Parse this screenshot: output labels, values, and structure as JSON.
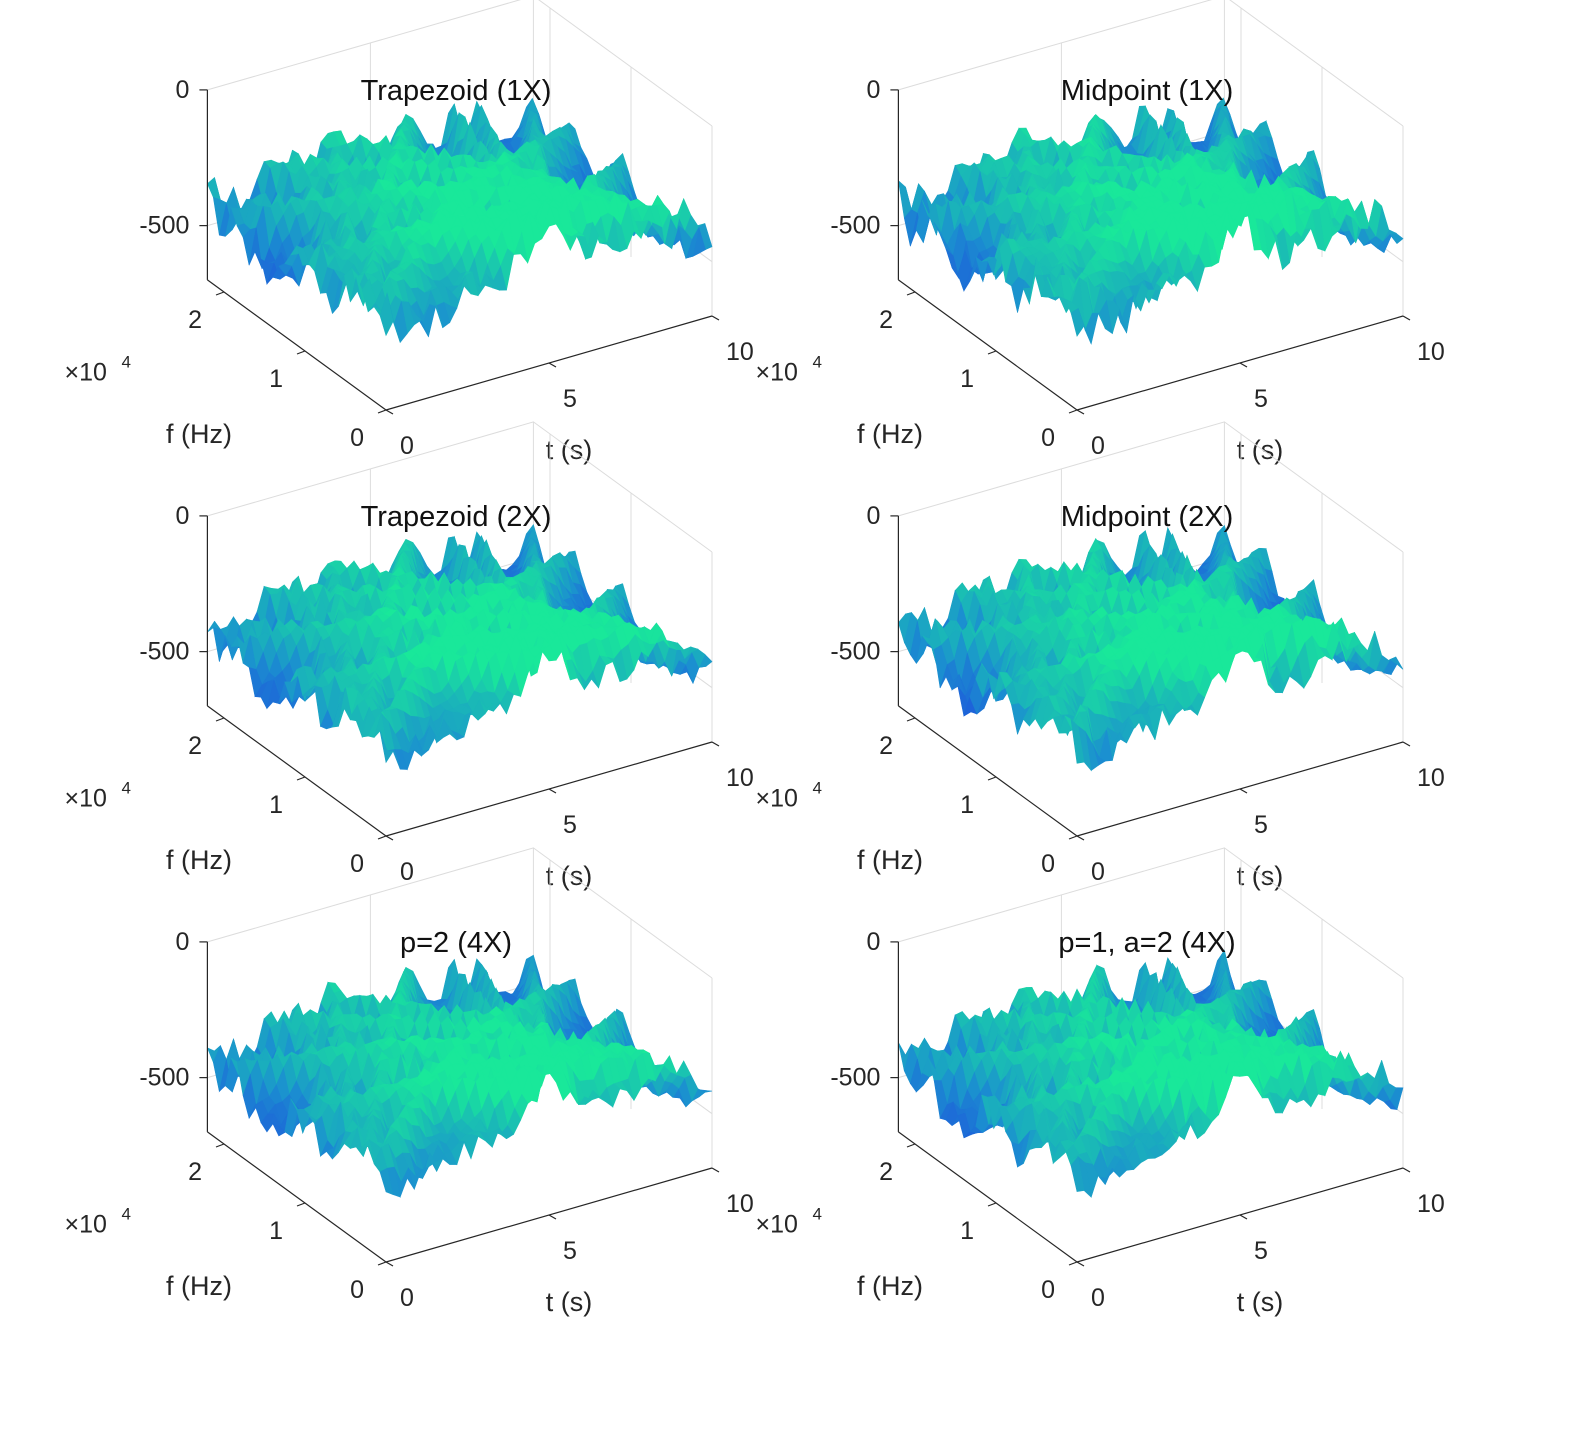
{
  "figure": {
    "layout": "3 rows x 2 columns"
  },
  "colormap": {
    "low": "#1f3fe0",
    "mid": "#1b8fd0",
    "high": "#19e89a"
  },
  "chart_data": [
    {
      "type": "surface",
      "title": "Trapezoid (1X)",
      "xlabel": "t (s)",
      "ylabel": "f (Hz)",
      "x_ticks": [
        "0",
        "5",
        "10"
      ],
      "y_ticks": [
        "0",
        "1",
        "2"
      ],
      "y_exponent": "×10",
      "y_exponent_power": "4",
      "z_ticks": [
        "0",
        "-500"
      ],
      "xlim": [
        0,
        10
      ],
      "ylim": [
        0,
        22050
      ],
      "zlim": [
        -700,
        0
      ],
      "seed": 11,
      "floor_noise": 1.0,
      "spread": 1.0
    },
    {
      "type": "surface",
      "title": "Midpoint (1X)",
      "xlabel": "t (s)",
      "ylabel": "f (Hz)",
      "x_ticks": [
        "0",
        "5",
        "10"
      ],
      "y_ticks": [
        "0",
        "1",
        "2"
      ],
      "y_exponent": "×10",
      "y_exponent_power": "4",
      "z_ticks": [
        "0",
        "-500"
      ],
      "xlim": [
        0,
        10
      ],
      "ylim": [
        0,
        22050
      ],
      "zlim": [
        -700,
        0
      ],
      "seed": 23,
      "floor_noise": 1.1,
      "spread": 1.0
    },
    {
      "type": "surface",
      "title": "Trapezoid (2X)",
      "xlabel": "t (s)",
      "ylabel": "f (Hz)",
      "x_ticks": [
        "0",
        "5",
        "10"
      ],
      "y_ticks": [
        "0",
        "1",
        "2"
      ],
      "y_exponent": "×10",
      "y_exponent_power": "4",
      "z_ticks": [
        "0",
        "-500"
      ],
      "xlim": [
        0,
        10
      ],
      "ylim": [
        0,
        22050
      ],
      "zlim": [
        -700,
        0
      ],
      "seed": 37,
      "floor_noise": 0.8,
      "spread": 0.8
    },
    {
      "type": "surface",
      "title": "Midpoint (2X)",
      "xlabel": "t (s)",
      "ylabel": "f (Hz)",
      "x_ticks": [
        "0",
        "5",
        "10"
      ],
      "y_ticks": [
        "0",
        "1",
        "2"
      ],
      "y_exponent": "×10",
      "y_exponent_power": "4",
      "z_ticks": [
        "0",
        "-500"
      ],
      "xlim": [
        0,
        10
      ],
      "ylim": [
        0,
        22050
      ],
      "zlim": [
        -700,
        0
      ],
      "seed": 41,
      "floor_noise": 0.9,
      "spread": 0.8
    },
    {
      "type": "surface",
      "title": "p=2 (4X)",
      "xlabel": "t (s)",
      "ylabel": "f (Hz)",
      "x_ticks": [
        "0",
        "5",
        "10"
      ],
      "y_ticks": [
        "0",
        "1",
        "2"
      ],
      "y_exponent": "×10",
      "y_exponent_power": "4",
      "z_ticks": [
        "0",
        "-500"
      ],
      "xlim": [
        0,
        10
      ],
      "ylim": [
        0,
        22050
      ],
      "zlim": [
        -700,
        0
      ],
      "seed": 53,
      "floor_noise": 0.7,
      "spread": 0.6
    },
    {
      "type": "surface",
      "title": "p=1, a=2 (4X)",
      "xlabel": "t (s)",
      "ylabel": "f (Hz)",
      "x_ticks": [
        "0",
        "5",
        "10"
      ],
      "y_ticks": [
        "0",
        "1",
        "2"
      ],
      "y_exponent": "×10",
      "y_exponent_power": "4",
      "z_ticks": [
        "0",
        "-500"
      ],
      "xlim": [
        0,
        10
      ],
      "ylim": [
        0,
        22050
      ],
      "zlim": [
        -700,
        0
      ],
      "seed": 67,
      "floor_noise": 0.7,
      "spread": 0.6
    }
  ]
}
